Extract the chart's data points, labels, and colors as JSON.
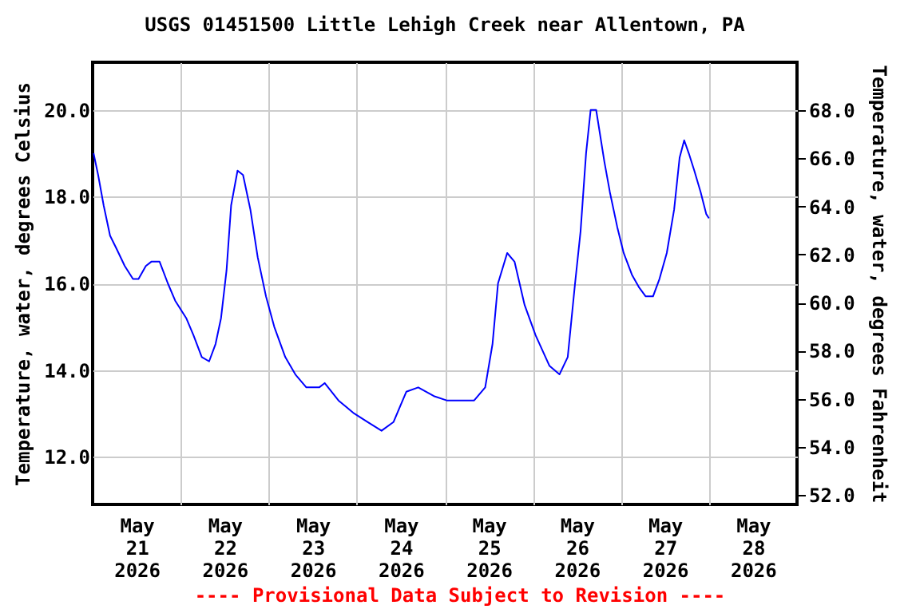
{
  "chart_data": {
    "type": "line",
    "title": "USGS 01451500 Little Lehigh Creek near Allentown, PA",
    "ylabel": "Temperature, water, degrees Celsius",
    "y2label": "Temperature, water, degrees Fahrenheit",
    "annotations": [
      "---- Provisional Data Subject to Revision ----"
    ],
    "xlim": [
      "2026-05-21T00:00",
      "2026-05-29T00:00"
    ],
    "xticks": [
      {
        "value": "2026-05-21T12:00",
        "label": "May 21 2026"
      },
      {
        "value": "2026-05-22T12:00",
        "label": "May 22 2026"
      },
      {
        "value": "2026-05-23T12:00",
        "label": "May 23 2026"
      },
      {
        "value": "2026-05-24T12:00",
        "label": "May 24 2026"
      },
      {
        "value": "2026-05-25T12:00",
        "label": "May 25 2026"
      },
      {
        "value": "2026-05-26T12:00",
        "label": "May 26 2026"
      },
      {
        "value": "2026-05-27T12:00",
        "label": "May 27 2026"
      },
      {
        "value": "2026-05-28T12:00",
        "label": "May 28 2026"
      },
      {
        "value": "2026-05-22T00:00",
        "label": null
      },
      {
        "value": "2026-05-23T00:00",
        "label": null
      },
      {
        "value": "2026-05-24T00:00",
        "label": null
      },
      {
        "value": "2026-05-25T00:00",
        "label": null
      },
      {
        "value": "2026-05-26T00:00",
        "label": null
      },
      {
        "value": "2026-05-27T00:00",
        "label": null
      },
      {
        "value": "2026-05-28T00:00",
        "label": null
      }
    ],
    "ylim": [
      10.9,
      21.1
    ],
    "yticks": [
      {
        "value": 12,
        "label": "12.0"
      },
      {
        "value": 14,
        "label": "14.0"
      },
      {
        "value": 16,
        "label": "16.0"
      },
      {
        "value": 18,
        "label": "18.0"
      },
      {
        "value": 20,
        "label": "20.0"
      }
    ],
    "y2lim": [
      51.6,
      70.0
    ],
    "y2ticks": [
      {
        "value": 52,
        "label": "52.0"
      },
      {
        "value": 54,
        "label": "54.0"
      },
      {
        "value": 56,
        "label": "56.0"
      },
      {
        "value": 58,
        "label": "58.0"
      },
      {
        "value": 60,
        "label": "60.0"
      },
      {
        "value": 62,
        "label": "62.0"
      },
      {
        "value": 64,
        "label": "64.0"
      },
      {
        "value": 66,
        "label": "66.0"
      },
      {
        "value": 68,
        "label": "68.0"
      }
    ],
    "grid": true,
    "x": [
      "2026-05-21T00:15",
      "2026-05-21T01:30",
      "2026-05-21T03:00",
      "2026-05-21T04:45",
      "2026-05-21T06:30",
      "2026-05-21T08:45",
      "2026-05-21T11:00",
      "2026-05-21T12:30",
      "2026-05-21T14:30",
      "2026-05-21T16:00",
      "2026-05-21T18:15",
      "2026-05-21T20:30",
      "2026-05-21T22:30",
      "2026-05-22T01:30",
      "2026-05-22T03:30",
      "2026-05-22T05:45",
      "2026-05-22T07:45",
      "2026-05-22T09:30",
      "2026-05-22T11:00",
      "2026-05-22T12:30",
      "2026-05-22T13:45",
      "2026-05-22T15:30",
      "2026-05-22T17:00",
      "2026-05-22T19:00",
      "2026-05-22T21:00",
      "2026-05-22T23:15",
      "2026-05-23T01:30",
      "2026-05-23T04:30",
      "2026-05-23T07:15",
      "2026-05-23T10:15",
      "2026-05-23T13:45",
      "2026-05-23T15:15",
      "2026-05-23T19:00",
      "2026-05-23T23:15",
      "2026-05-24T03:00",
      "2026-05-24T06:45",
      "2026-05-24T10:00",
      "2026-05-24T13:30",
      "2026-05-24T16:45",
      "2026-05-24T21:00",
      "2026-05-25T00:30",
      "2026-05-25T08:00",
      "2026-05-25T11:00",
      "2026-05-25T13:00",
      "2026-05-25T14:30",
      "2026-05-25T17:00",
      "2026-05-25T19:00",
      "2026-05-25T21:45",
      "2026-05-26T00:45",
      "2026-05-26T04:30",
      "2026-05-26T07:15",
      "2026-05-26T09:30",
      "2026-05-26T11:30",
      "2026-05-26T13:00",
      "2026-05-26T14:30",
      "2026-05-26T15:45",
      "2026-05-26T17:15",
      "2026-05-26T19:30",
      "2026-05-26T21:00",
      "2026-05-26T23:00",
      "2026-05-27T00:45",
      "2026-05-27T03:00",
      "2026-05-27T05:00",
      "2026-05-27T06:45",
      "2026-05-27T08:45",
      "2026-05-27T10:30",
      "2026-05-27T12:30",
      "2026-05-27T14:30",
      "2026-05-27T16:00",
      "2026-05-27T17:15",
      "2026-05-27T18:30",
      "2026-05-27T20:00",
      "2026-05-27T21:45",
      "2026-05-27T23:15",
      "2026-05-28T00:00"
    ],
    "series": [
      {
        "color": "#0000ff",
        "values": [
          19.0,
          18.5,
          17.8,
          17.1,
          16.8,
          16.4,
          16.1,
          16.1,
          16.4,
          16.5,
          16.5,
          16.0,
          15.6,
          15.2,
          14.8,
          14.3,
          14.2,
          14.6,
          15.2,
          16.3,
          17.8,
          18.6,
          18.5,
          17.7,
          16.6,
          15.7,
          15.0,
          14.3,
          13.9,
          13.6,
          13.6,
          13.7,
          13.3,
          13.0,
          12.8,
          12.6,
          12.8,
          13.5,
          13.6,
          13.4,
          13.3,
          13.3,
          13.6,
          14.6,
          16.0,
          16.7,
          16.5,
          15.5,
          14.8,
          14.1,
          13.9,
          14.3,
          16.0,
          17.2,
          19.0,
          20.0,
          20.0,
          18.8,
          18.1,
          17.3,
          16.7,
          16.2,
          15.9,
          15.7,
          15.7,
          16.1,
          16.7,
          17.7,
          18.9,
          19.3,
          19.0,
          18.6,
          18.1,
          17.6,
          17.5
        ]
      }
    ]
  }
}
